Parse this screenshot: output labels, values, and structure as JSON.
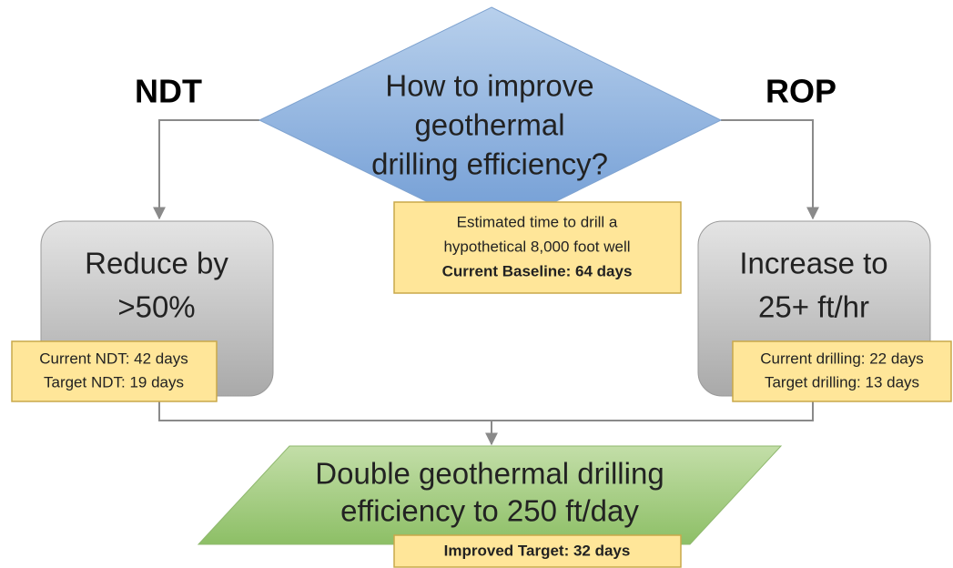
{
  "decision": {
    "lines": [
      "How to improve",
      "geothermal",
      "drilling efficiency?"
    ]
  },
  "baseline_note": {
    "lines": [
      "Estimated time to drill a",
      "hypothetical 8,000 foot well",
      "Current Baseline: 64 days"
    ]
  },
  "left_branch": {
    "label": "NDT",
    "box_lines": [
      "Reduce by",
      ">50%"
    ],
    "note_lines": [
      "Current NDT: 42 days",
      "Target NDT: 19 days"
    ]
  },
  "right_branch": {
    "label": "ROP",
    "box_lines": [
      "Increase to",
      "25+ ft/hr"
    ],
    "note_lines": [
      "Current drilling: 22 days",
      "Target drilling: 13 days"
    ]
  },
  "outcome": {
    "lines": [
      "Double geothermal drilling",
      "efficiency to 250 ft/day"
    ],
    "note": "Improved Target: 32 days"
  }
}
